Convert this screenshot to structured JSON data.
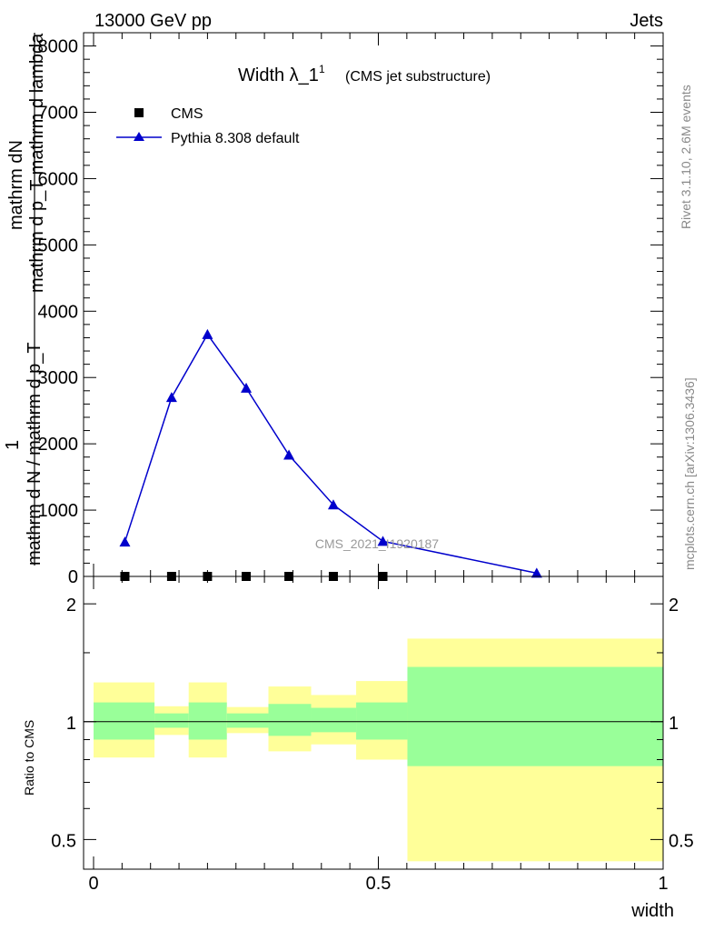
{
  "header": {
    "left": "13000 GeV pp",
    "right": "Jets"
  },
  "side_labels": {
    "rivet": "Rivet 3.1.10,  2.6M events",
    "mcplots": "mcplots.cern.ch [arXiv:1306.3436]"
  },
  "chart_data": [
    {
      "type": "line",
      "title": "Width λ_1",
      "title_superscript": "1",
      "subtitle": "(CMS jet substructure)",
      "watermark": "CMS_2021_I1920187",
      "ylabel_parts": {
        "top": "mathrm dN",
        "bottom": "mathrm d p_T mathrm d lambda",
        "prefix": "1",
        "prefix_den": "mathrm d N / mathrm d p_T"
      },
      "xlim": [
        0,
        1
      ],
      "ylim": [
        0,
        8200
      ],
      "yticks": [
        0,
        1000,
        2000,
        3000,
        4000,
        5000,
        6000,
        7000,
        8000
      ],
      "ytick_labels": [
        "0",
        "1000",
        "2000",
        "3000",
        "4000",
        "5000",
        "6000",
        "7000",
        "8000"
      ],
      "legend_position": "top-left",
      "series": [
        {
          "name": "CMS",
          "marker": "square",
          "color": "#000000",
          "x": [
            0.055,
            0.137,
            0.2,
            0.268,
            0.343,
            0.421,
            0.508
          ],
          "y": [
            0,
            0,
            0,
            0,
            0,
            0,
            0
          ]
        },
        {
          "name": "Pythia 8.308 default",
          "marker": "triangle",
          "color": "#0000cc",
          "x": [
            0.055,
            0.137,
            0.2,
            0.268,
            0.343,
            0.421,
            0.508,
            0.778
          ],
          "y": [
            520,
            2700,
            3650,
            2840,
            1830,
            1080,
            530,
            50
          ]
        }
      ]
    },
    {
      "type": "area",
      "ylabel": "Ratio to CMS",
      "xlabel": "width",
      "xlim": [
        0,
        1
      ],
      "ylim": [
        0.42,
        2.35
      ],
      "log_y": true,
      "xticks": [
        0,
        0.5,
        1
      ],
      "xtick_labels": [
        "0",
        "0.5",
        "1"
      ],
      "yticks": [
        0.5,
        1,
        2
      ],
      "ytick_labels": [
        "0.5",
        "1",
        "2"
      ],
      "reference_line": 1,
      "bands": {
        "green_color": "#99ff99",
        "yellow_color": "#ffff99",
        "bins": [
          {
            "x0": 0.0,
            "x1": 0.107,
            "g_lo": 0.9,
            "g_hi": 1.12,
            "y_lo": 0.81,
            "y_hi": 1.26
          },
          {
            "x0": 0.107,
            "x1": 0.167,
            "g_lo": 0.965,
            "g_hi": 1.05,
            "y_lo": 0.925,
            "y_hi": 1.095
          },
          {
            "x0": 0.167,
            "x1": 0.234,
            "g_lo": 0.9,
            "g_hi": 1.12,
            "y_lo": 0.81,
            "y_hi": 1.26
          },
          {
            "x0": 0.234,
            "x1": 0.307,
            "g_lo": 0.965,
            "g_hi": 1.05,
            "y_lo": 0.935,
            "y_hi": 1.09
          },
          {
            "x0": 0.307,
            "x1": 0.382,
            "g_lo": 0.92,
            "g_hi": 1.11,
            "y_lo": 0.84,
            "y_hi": 1.23
          },
          {
            "x0": 0.382,
            "x1": 0.461,
            "g_lo": 0.94,
            "g_hi": 1.085,
            "y_lo": 0.875,
            "y_hi": 1.17
          },
          {
            "x0": 0.461,
            "x1": 0.551,
            "g_lo": 0.9,
            "g_hi": 1.12,
            "y_lo": 0.8,
            "y_hi": 1.27
          },
          {
            "x0": 0.551,
            "x1": 1.0,
            "g_lo": 0.77,
            "g_hi": 1.38,
            "y_lo": 0.44,
            "y_hi": 1.63
          }
        ]
      }
    }
  ]
}
